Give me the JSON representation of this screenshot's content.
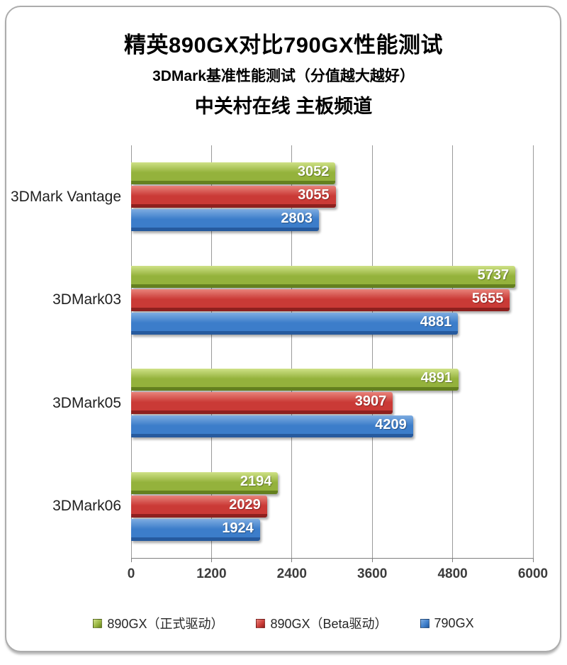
{
  "titles": {
    "main": "精英890GX对比790GX性能测试",
    "sub": "3DMark基准性能测试（分值越大越好）",
    "channel": "中关村在线 主板频道"
  },
  "chart_data": {
    "type": "bar",
    "orientation": "horizontal",
    "title": "精英890GX对比790GX性能测试",
    "subtitle": "3DMark基准性能测试（分值越大越好）",
    "source_line": "中关村在线 主板频道",
    "categories": [
      "3DMark Vantage",
      "3DMark03",
      "3DMark05",
      "3DMark06"
    ],
    "series": [
      {
        "name": "890GX（正式驱动）",
        "color": "#94b23c",
        "color_top": "#cfe187",
        "color_dark": "#64801f",
        "values": [
          3052,
          5737,
          4891,
          2194
        ]
      },
      {
        "name": "890GX（Beta驱动）",
        "color": "#ca3a36",
        "color_top": "#e8837b",
        "color_dark": "#8e201e",
        "values": [
          3055,
          5655,
          3907,
          2029
        ]
      },
      {
        "name": "790GX",
        "color": "#3c7dca",
        "color_top": "#7eace1",
        "color_dark": "#265a9e",
        "values": [
          2803,
          4881,
          4209,
          1924
        ]
      }
    ],
    "xlabel": "",
    "ylabel": "",
    "xlim": [
      0,
      6000
    ],
    "xticks": [
      0,
      1200,
      2400,
      3600,
      4800,
      6000
    ],
    "grid": true,
    "legend_position": "bottom",
    "value_labels": "inside-end"
  }
}
